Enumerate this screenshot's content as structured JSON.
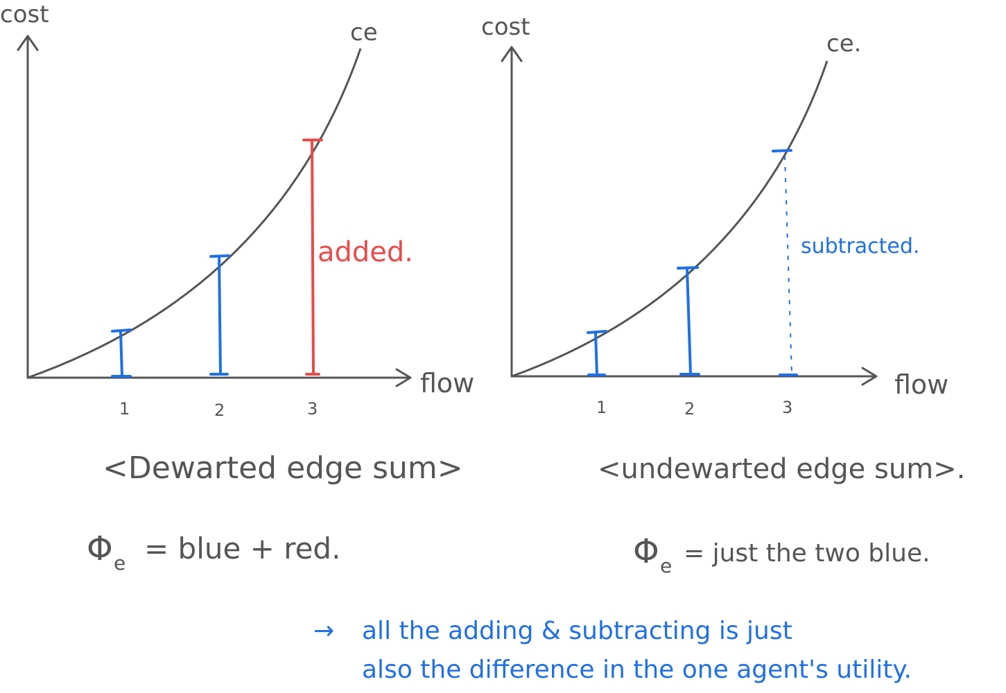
{
  "left_graph": {
    "y_axis_label": "cost",
    "x_axis_label": "flow",
    "curve_label": "ce",
    "ticks": [
      "1",
      "2",
      "3"
    ],
    "segment_label": "added.",
    "caption": "<Dewarted edge sum>",
    "formula_symbol": "Φ",
    "formula_sub": "e",
    "formula_text": "= blue + red."
  },
  "right_graph": {
    "y_axis_label": "cost",
    "x_axis_label": "flow",
    "curve_label": "ce.",
    "ticks": [
      "1",
      "2",
      "3"
    ],
    "segment_label": "subtracted.",
    "caption": "<undewarted edge sum>.",
    "formula_symbol": "Φ",
    "formula_sub": "e",
    "formula_text": "= just the two blue."
  },
  "note": {
    "arrow": "→",
    "line1": "all the adding & subtracting is just",
    "line2": "also the difference in the one agent's utility."
  },
  "colors": {
    "ink": "#555555",
    "blue": "#1f6fe8",
    "red": "#e94b4b"
  }
}
